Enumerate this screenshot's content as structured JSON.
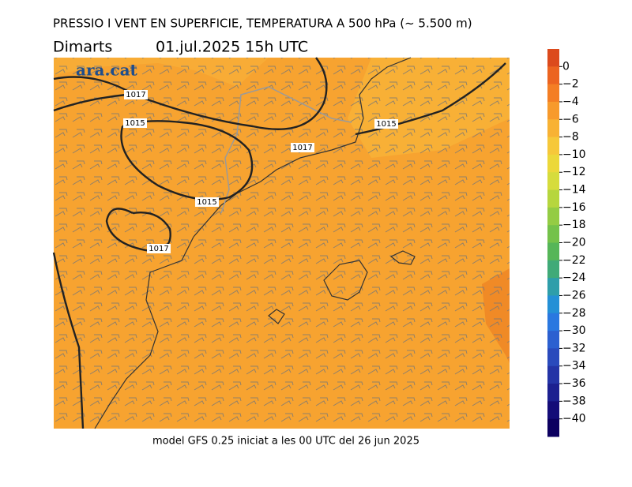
{
  "header": {
    "title": "PRESSIO I VENT EN SUPERFICIE, TEMPERATURA A 500 hPa (~ 5.500 m)",
    "day": "Dimarts",
    "date": "01.jul.2025 15h UTC"
  },
  "map": {
    "logo": "ara.cat",
    "isobar_labels": [
      "1017",
      "1015",
      "1017",
      "1015",
      "1015",
      "1017"
    ]
  },
  "colorbar": {
    "labels": [
      "0",
      "−2",
      "−4",
      "−6",
      "−8",
      "−10",
      "−12",
      "−14",
      "−16",
      "−18",
      "−20",
      "−22",
      "−24",
      "−26",
      "−28",
      "−30",
      "−32",
      "−34",
      "−36",
      "−38",
      "−40"
    ],
    "colors": [
      "#dc4a1c",
      "#ec6420",
      "#f47e24",
      "#f79a2c",
      "#f8b234",
      "#f6c83a",
      "#ecd83a",
      "#d6dc3c",
      "#b6d63e",
      "#94cc44",
      "#74c24a",
      "#56b658",
      "#40aa78",
      "#2e9eaa",
      "#2490d6",
      "#2a78e0",
      "#2c60d0",
      "#2a4abc",
      "#2434a6",
      "#1c2090",
      "#140c78",
      "#0c0060"
    ]
  },
  "footer": "model GFS 0.25 iniciat a les 00 UTC del 26 jun 2025"
}
